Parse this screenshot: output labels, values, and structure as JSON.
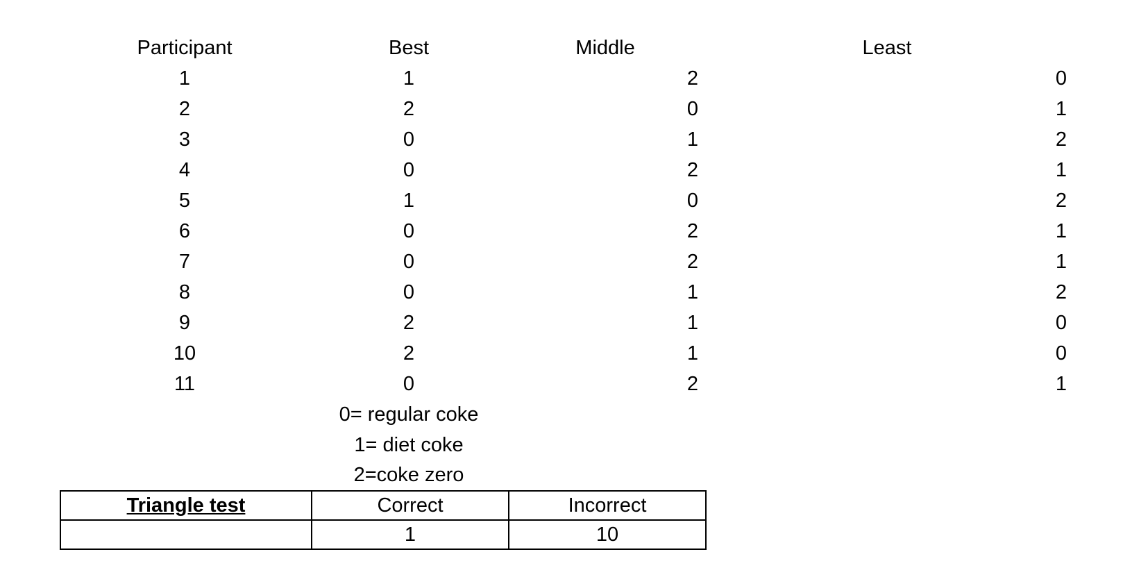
{
  "headers": {
    "participant": "Participant",
    "best": "Best",
    "middle": "Middle",
    "least": "Least"
  },
  "rows": [
    {
      "participant": "1",
      "best": "1",
      "middle": "2",
      "least": "0"
    },
    {
      "participant": "2",
      "best": "2",
      "middle": "0",
      "least": "1"
    },
    {
      "participant": "3",
      "best": "0",
      "middle": "1",
      "least": "2"
    },
    {
      "participant": "4",
      "best": "0",
      "middle": "2",
      "least": "1"
    },
    {
      "participant": "5",
      "best": "1",
      "middle": "0",
      "least": "2"
    },
    {
      "participant": "6",
      "best": "0",
      "middle": "2",
      "least": "1"
    },
    {
      "participant": "7",
      "best": "0",
      "middle": "2",
      "least": "1"
    },
    {
      "participant": "8",
      "best": "0",
      "middle": "1",
      "least": "2"
    },
    {
      "participant": "9",
      "best": "2",
      "middle": "1",
      "least": "0"
    },
    {
      "participant": "10",
      "best": "2",
      "middle": "1",
      "least": "0"
    },
    {
      "participant": "11",
      "best": "0",
      "middle": "2",
      "least": "1"
    }
  ],
  "legend": [
    "0= regular coke",
    "1= diet coke",
    "2=coke zero"
  ],
  "triangle_test": {
    "title": "Triangle test",
    "correct_label": "Correct",
    "incorrect_label": "Incorrect",
    "blank": "",
    "correct_value": "1",
    "incorrect_value": "10"
  }
}
